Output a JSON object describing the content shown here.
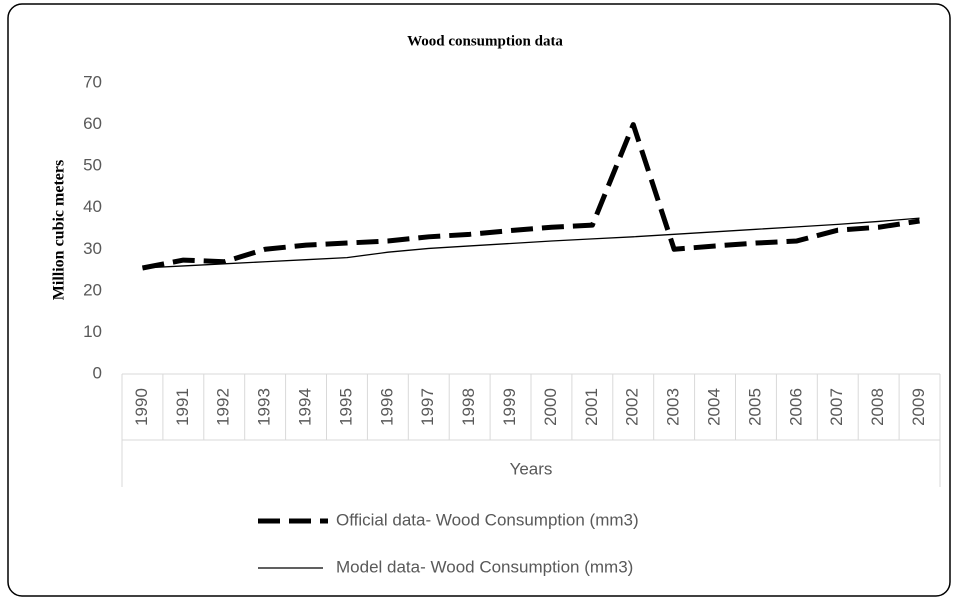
{
  "chart_data": {
    "type": "line",
    "title": "Wood consumption data",
    "y_label": "Million cubic meters",
    "x_label": "Years",
    "categories": [
      "1990",
      "1991",
      "1992",
      "1993",
      "1994",
      "1995",
      "1996",
      "1997",
      "1998",
      "1999",
      "2000",
      "2001",
      "2002",
      "2003",
      "2004",
      "2005",
      "2006",
      "2007",
      "2008",
      "2009"
    ],
    "series": [
      {
        "name": "Official data- Wood Consumption (mm3)",
        "color": "#000000",
        "dashed": true,
        "values": [
          25.5,
          27.4,
          27,
          30,
          31,
          31.5,
          32,
          33,
          33.6,
          34.5,
          35.3,
          35.8,
          60,
          30,
          30.8,
          31.5,
          32,
          34.6,
          35.3,
          36.8
        ]
      },
      {
        "name": "Model data- Wood Consumption (mm3)",
        "color": "#000000",
        "dashed": false,
        "values": [
          25.5,
          26,
          26.5,
          27,
          27.5,
          28,
          29.3,
          30.2,
          30.8,
          31.4,
          32,
          32.5,
          33,
          33.6,
          34.2,
          34.8,
          35.4,
          36,
          36.7,
          37.5
        ]
      }
    ],
    "ylim": [
      0,
      70
    ],
    "yticks": [
      0,
      10,
      20,
      30,
      40,
      50,
      60,
      70
    ],
    "grid": false,
    "legend": "bottom"
  }
}
